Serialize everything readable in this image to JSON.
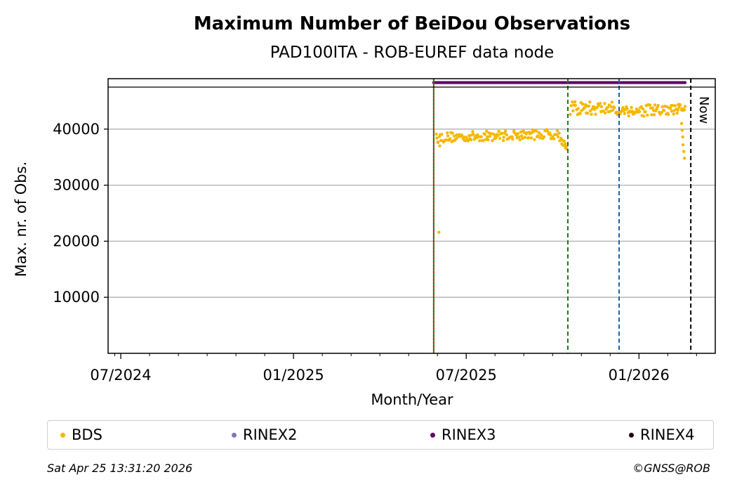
{
  "colors": {
    "bds": "#f5b800",
    "rinex2": "#7b78b8",
    "rinex3": "#5e0c62",
    "rinex4": "#1a0a14",
    "grid": "#b0b0b0",
    "vline_red": "#d62020",
    "vline_green": "#1a7f1a",
    "vline_blue": "#1f5fa8",
    "vline_black": "#000000"
  },
  "chart_data": {
    "type": "scatter",
    "title": "Maximum Number of BeiDou Observations",
    "subtitle": "PAD100ITA - ROB-EUREF data node",
    "xlabel": "Month/Year",
    "ylabel": "Max. nr. of Obs.",
    "x_unit": "months since 2024-01-01",
    "xlim": [
      5.56,
      26.65
    ],
    "ylim": [
      0,
      49000
    ],
    "grid": "horizontal",
    "x_ticks": [
      {
        "x": 6,
        "label": "07/2024"
      },
      {
        "x": 12,
        "label": "01/2025"
      },
      {
        "x": 18,
        "label": "07/2025"
      },
      {
        "x": 24,
        "label": "01/2026"
      }
    ],
    "x_minor_ticks": [
      5.79,
      7,
      8,
      9,
      10,
      11,
      13,
      14,
      15,
      16,
      17,
      19,
      20,
      21,
      22,
      23,
      25,
      26
    ],
    "y_ticks": [
      10000,
      20000,
      30000,
      40000
    ],
    "top_line_y": 47500,
    "vertical_lines": [
      {
        "x": 16.87,
        "style": "solid",
        "color": "green"
      },
      {
        "x": 16.87,
        "style": "dotted",
        "color": "red"
      },
      {
        "x": 21.53,
        "style": "dashed",
        "color": "green"
      },
      {
        "x": 23.31,
        "style": "dashed",
        "color": "blue"
      },
      {
        "x": 25.8,
        "style": "dashed",
        "color": "black",
        "label": "Now"
      }
    ],
    "series": [
      {
        "name": "BDS",
        "segments": [
          {
            "x0": 16.97,
            "x1": 21.5,
            "base": 38500,
            "jitter": 900,
            "count": 150,
            "ramp_end": 39200,
            "dip_x": 21.2,
            "dip_to": 36500
          },
          {
            "x0": 21.62,
            "x1": 23.25,
            "base": 43700,
            "jitter": 1200,
            "count": 55
          },
          {
            "x0": 23.32,
            "x1": 25.35,
            "base": 43300,
            "jitter": 1100,
            "count": 70
          },
          {
            "x0": 25.36,
            "x1": 25.6,
            "base": 43800,
            "jitter": 700,
            "count": 10
          }
        ],
        "extra_points": [
          {
            "x": 17.05,
            "y": 21600
          },
          {
            "x": 16.98,
            "y": 38400
          },
          {
            "x": 17.02,
            "y": 37600
          },
          {
            "x": 17.08,
            "y": 37000
          },
          {
            "x": 21.4,
            "y": 37100
          },
          {
            "x": 21.45,
            "y": 36600
          },
          {
            "x": 25.48,
            "y": 41000
          },
          {
            "x": 25.5,
            "y": 39800
          },
          {
            "x": 25.52,
            "y": 38600
          },
          {
            "x": 25.53,
            "y": 37200
          },
          {
            "x": 25.56,
            "y": 36000
          },
          {
            "x": 25.58,
            "y": 34800
          }
        ]
      },
      {
        "name": "RINEX2",
        "points": []
      },
      {
        "name": "RINEX3",
        "line": {
          "x0": 16.87,
          "x1": 25.6,
          "y": 48300,
          "count": 200
        }
      },
      {
        "name": "RINEX4",
        "points": []
      }
    ]
  },
  "now_label": "Now",
  "legend": [
    "BDS",
    "RINEX2",
    "RINEX3",
    "RINEX4"
  ],
  "footer": {
    "timestamp": "Sat Apr 25 13:31:20 2026",
    "credit": "©GNSS@ROB"
  }
}
